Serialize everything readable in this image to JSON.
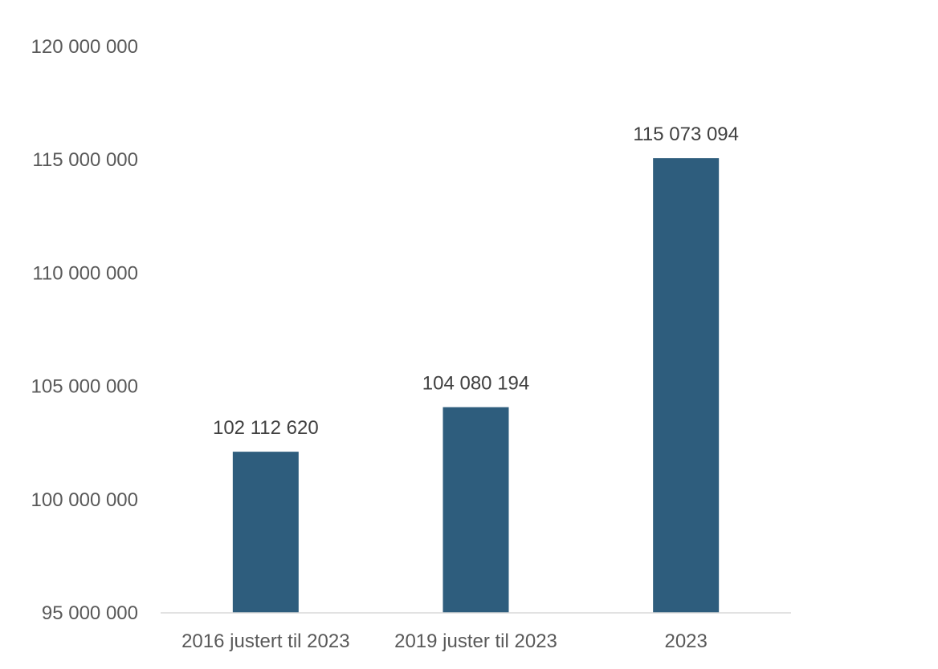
{
  "chart_data": {
    "type": "bar",
    "title": "",
    "xlabel": "",
    "ylabel": "",
    "categories": [
      "2016 justert til 2023",
      "2019 juster til 2023",
      "2023"
    ],
    "values": [
      102112620,
      104080194,
      115073094
    ],
    "data_labels": [
      "102 112 620",
      "104 080 194",
      "115 073 094"
    ],
    "ylim": [
      95000000,
      120000000
    ],
    "yticks": [
      95000000,
      100000000,
      105000000,
      110000000,
      115000000,
      120000000
    ],
    "ytick_labels": [
      "95 000 000",
      "100 000 000",
      "105 000 000",
      "110 000 000",
      "115 000 000",
      "120 000 000"
    ],
    "grid": false,
    "legend": "none",
    "bar_color": "#2E5D7D",
    "axis_color": "#D9D9D9"
  }
}
